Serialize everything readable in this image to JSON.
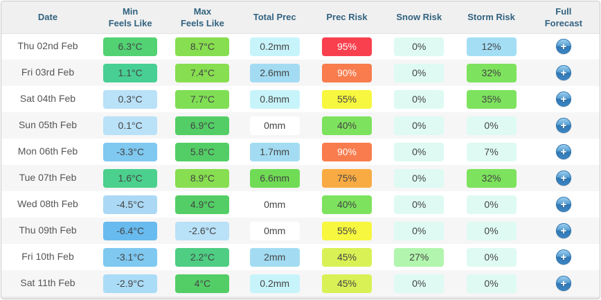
{
  "table": {
    "full_forecast_label": "+",
    "colors": {
      "header_text": "#31627f",
      "header_bg": "#f0f0f0",
      "row_alt_bg": "#f6f6f6",
      "border": "#c9c9c9",
      "date_text": "#555555",
      "cell_text": "#444444",
      "plus_button_blue": "#3c86c4",
      "risk_red": "#f9404e",
      "risk_orange": "#f87c4d",
      "risk_amber": "#f9ab43",
      "risk_yellow": "#f7f73f",
      "risk_yellow_green": "#d9f155",
      "risk_green": "#7de25d",
      "mint_zero": "#defaf3"
    },
    "headers": [
      {
        "key": "date",
        "line1": "Date",
        "line2": ""
      },
      {
        "key": "min-feels-like",
        "line1": "Min",
        "line2": "Feels Like"
      },
      {
        "key": "max-feels-like",
        "line1": "Max",
        "line2": "Feels Like"
      },
      {
        "key": "total-prec",
        "line1": "Total Prec",
        "line2": ""
      },
      {
        "key": "prec-risk",
        "line1": "Prec Risk",
        "line2": ""
      },
      {
        "key": "snow-risk",
        "line1": "Snow Risk",
        "line2": ""
      },
      {
        "key": "storm-risk",
        "line1": "Storm Risk",
        "line2": ""
      },
      {
        "key": "full-forecast",
        "line1": "Full",
        "line2": "Forecast"
      }
    ],
    "rows": [
      {
        "date": "Thu 02nd Feb",
        "cells": [
          {
            "text": "6.3°C",
            "bg": "#52d273"
          },
          {
            "text": "8.7°C",
            "bg": "#87de50"
          },
          {
            "text": "0.2mm",
            "bg": "#c7f4fa"
          },
          {
            "text": "95%",
            "bg": "#f9404e",
            "fg": "#ffffff"
          },
          {
            "text": "0%",
            "bg": "#defaf3"
          },
          {
            "text": "12%",
            "bg": "#a3def5"
          }
        ]
      },
      {
        "date": "Fri 03rd Feb",
        "cells": [
          {
            "text": "1.1°C",
            "bg": "#48cf94"
          },
          {
            "text": "7.4°C",
            "bg": "#87de50"
          },
          {
            "text": "2.6mm",
            "bg": "#a3dcf2"
          },
          {
            "text": "90%",
            "bg": "#f87c4d",
            "fg": "#ffffff"
          },
          {
            "text": "0%",
            "bg": "#defaf3"
          },
          {
            "text": "32%",
            "bg": "#7de25d"
          }
        ]
      },
      {
        "date": "Sat 04th Feb",
        "cells": [
          {
            "text": "0.3°C",
            "bg": "#b9e1f8"
          },
          {
            "text": "7.7°C",
            "bg": "#80de55"
          },
          {
            "text": "0.8mm",
            "bg": "#c7f4fa"
          },
          {
            "text": "55%",
            "bg": "#f7f73f"
          },
          {
            "text": "0%",
            "bg": "#defaf3"
          },
          {
            "text": "35%",
            "bg": "#7de25d"
          }
        ]
      },
      {
        "date": "Sun 05th Feb",
        "cells": [
          {
            "text": "0.1°C",
            "bg": "#b9e1f8"
          },
          {
            "text": "6.9°C",
            "bg": "#53ce66"
          },
          {
            "text": "0mm",
            "bg": "#ffffff"
          },
          {
            "text": "40%",
            "bg": "#7de25d"
          },
          {
            "text": "0%",
            "bg": "#defaf3"
          },
          {
            "text": "0%",
            "bg": "#defaf3"
          }
        ]
      },
      {
        "date": "Mon 06th Feb",
        "cells": [
          {
            "text": "-3.3°C",
            "bg": "#7fc8f0"
          },
          {
            "text": "5.8°C",
            "bg": "#53ce66"
          },
          {
            "text": "1.7mm",
            "bg": "#a3dcf2"
          },
          {
            "text": "90%",
            "bg": "#f87c4d",
            "fg": "#ffffff"
          },
          {
            "text": "0%",
            "bg": "#defaf3"
          },
          {
            "text": "7%",
            "bg": "#defaf3"
          }
        ]
      },
      {
        "date": "Tue 07th Feb",
        "cells": [
          {
            "text": "1.6°C",
            "bg": "#4bd08d"
          },
          {
            "text": "8.9°C",
            "bg": "#87de50"
          },
          {
            "text": "6.6mm",
            "bg": "#70dc55"
          },
          {
            "text": "75%",
            "bg": "#f9ab43"
          },
          {
            "text": "0%",
            "bg": "#defaf3"
          },
          {
            "text": "32%",
            "bg": "#7de25d"
          }
        ]
      },
      {
        "date": "Wed 08th Feb",
        "cells": [
          {
            "text": "-4.5°C",
            "bg": "#abd9f5"
          },
          {
            "text": "4.9°C",
            "bg": "#53ce66"
          },
          {
            "text": "0mm",
            "bg": "#ffffff"
          },
          {
            "text": "40%",
            "bg": "#7de25d"
          },
          {
            "text": "0%",
            "bg": "#defaf3"
          },
          {
            "text": "0%",
            "bg": "#defaf3"
          }
        ]
      },
      {
        "date": "Thu 09th Feb",
        "cells": [
          {
            "text": "-6.4°C",
            "bg": "#68bbee"
          },
          {
            "text": "-2.6°C",
            "bg": "#b9e1f8"
          },
          {
            "text": "0mm",
            "bg": "#ffffff"
          },
          {
            "text": "55%",
            "bg": "#f7f73f"
          },
          {
            "text": "0%",
            "bg": "#defaf3"
          },
          {
            "text": "0%",
            "bg": "#defaf3"
          }
        ]
      },
      {
        "date": "Fri 10th Feb",
        "cells": [
          {
            "text": "-3.1°C",
            "bg": "#7fc8f0"
          },
          {
            "text": "2.2°C",
            "bg": "#4ecd83"
          },
          {
            "text": "2mm",
            "bg": "#a3dcf2"
          },
          {
            "text": "45%",
            "bg": "#d9f155"
          },
          {
            "text": "27%",
            "bg": "#b2f5ae"
          },
          {
            "text": "0%",
            "bg": "#defaf3"
          }
        ]
      },
      {
        "date": "Sat 11th Feb",
        "cells": [
          {
            "text": "-2.9°C",
            "bg": "#abdcf7"
          },
          {
            "text": "4°C",
            "bg": "#53ce66"
          },
          {
            "text": "0.2mm",
            "bg": "#c7f4fa"
          },
          {
            "text": "45%",
            "bg": "#d9f155"
          },
          {
            "text": "0%",
            "bg": "#defaf3"
          },
          {
            "text": "0%",
            "bg": "#defaf3"
          }
        ]
      }
    ]
  }
}
